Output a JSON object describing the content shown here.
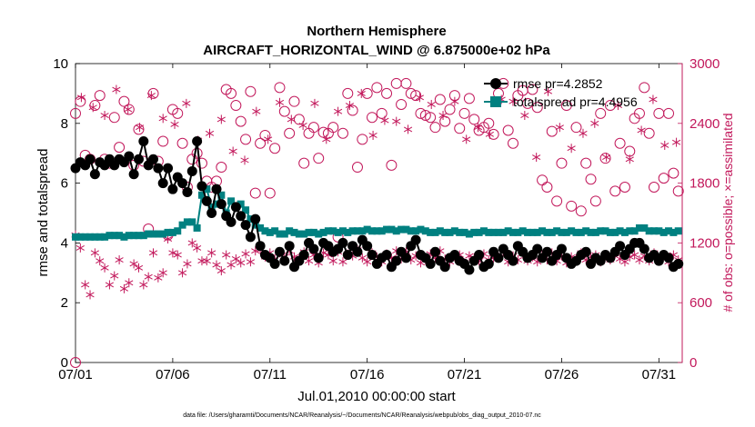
{
  "chart_data": {
    "type": "line",
    "title": "Northern Hemisphere",
    "subtitle": "AIRCRAFT_HORIZONTAL_WIND @ 6.875000e+02 hPa",
    "xlabel": "Jul.01,2010 00:00:00 start",
    "ylabel": "rmse and totalspread",
    "y2label": "# of obs: o=possible; ×=assimilated",
    "footer": "data file: /Users/gharamti/Documents/NCAR/Reanalysis/~/Documents/NCAR/Reanalysis/webpub/obs_diag_output_2010-07.nc",
    "xlim": [
      0,
      31.2
    ],
    "ylim": [
      0,
      10
    ],
    "y2lim": [
      0,
      3000
    ],
    "x_ticks": [
      0,
      5,
      10,
      15,
      20,
      25,
      30
    ],
    "x_tick_labels": [
      "07/01",
      "07/06",
      "07/11",
      "07/16",
      "07/21",
      "07/26",
      "07/31"
    ],
    "y_ticks": [
      0,
      2,
      4,
      6,
      8,
      10
    ],
    "y_tick_labels": [
      "0",
      "2",
      "4",
      "6",
      "8",
      "10"
    ],
    "y2_ticks": [
      0,
      600,
      1200,
      1800,
      2400,
      3000
    ],
    "y2_tick_labels": [
      "0",
      "600",
      "1200",
      "1800",
      "2400",
      "3000"
    ],
    "series_meta": [
      {
        "name": "rmse",
        "legend": "rmse pr=4.2852",
        "color": "#000000",
        "marker": "circle"
      },
      {
        "name": "totalspread",
        "legend": "totalspread pr=4.4956",
        "color": "#008080",
        "marker": "square"
      },
      {
        "name": "possible",
        "color": "#c2185b",
        "marker": "open-circle",
        "axis": "right"
      },
      {
        "name": "assimilated",
        "color": "#c2185b",
        "marker": "asterisk",
        "axis": "right"
      }
    ],
    "colors": {
      "rmse": "#000000",
      "spread": "#008080",
      "obs": "#c2185b"
    },
    "x": [
      0.0,
      0.25,
      0.5,
      0.75,
      1.0,
      1.25,
      1.5,
      1.75,
      2.0,
      2.25,
      2.5,
      2.75,
      3.0,
      3.25,
      3.5,
      3.75,
      4.0,
      4.25,
      4.5,
      4.75,
      5.0,
      5.25,
      5.5,
      5.75,
      6.0,
      6.25,
      6.5,
      6.75,
      7.0,
      7.25,
      7.5,
      7.75,
      8.0,
      8.25,
      8.5,
      8.75,
      9.0,
      9.25,
      9.5,
      9.75,
      10.0,
      10.25,
      10.5,
      10.75,
      11.0,
      11.25,
      11.5,
      11.75,
      12.0,
      12.25,
      12.5,
      12.75,
      13.0,
      13.25,
      13.5,
      13.75,
      14.0,
      14.25,
      14.5,
      14.75,
      15.0,
      15.25,
      15.5,
      15.75,
      16.0,
      16.25,
      16.5,
      16.75,
      17.0,
      17.25,
      17.5,
      17.75,
      18.0,
      18.25,
      18.5,
      18.75,
      19.0,
      19.25,
      19.5,
      19.75,
      20.0,
      20.25,
      20.5,
      20.75,
      21.0,
      21.25,
      21.5,
      21.75,
      22.0,
      22.25,
      22.5,
      22.75,
      23.0,
      23.25,
      23.5,
      23.75,
      24.0,
      24.25,
      24.5,
      24.75,
      25.0,
      25.25,
      25.5,
      25.75,
      26.0,
      26.25,
      26.5,
      26.75,
      27.0,
      27.25,
      27.5,
      27.75,
      28.0,
      28.25,
      28.5,
      28.75,
      29.0,
      29.25,
      29.5,
      29.75,
      30.0,
      30.25,
      30.5,
      30.75,
      31.0
    ],
    "rmse": [
      6.5,
      6.7,
      6.6,
      6.8,
      6.3,
      6.7,
      6.6,
      6.8,
      6.6,
      6.8,
      6.7,
      6.9,
      6.3,
      6.8,
      7.4,
      6.6,
      6.8,
      6.5,
      6.0,
      6.5,
      5.8,
      6.2,
      6.0,
      5.7,
      6.4,
      7.4,
      5.9,
      5.4,
      5.0,
      5.8,
      5.3,
      4.9,
      4.7,
      5.2,
      4.9,
      4.6,
      4.2,
      4.8,
      3.9,
      3.6,
      3.5,
      3.3,
      3.7,
      3.4,
      3.9,
      3.2,
      3.4,
      3.6,
      4.0,
      3.8,
      3.5,
      4.0,
      3.9,
      3.7,
      3.8,
      4.0,
      3.6,
      3.9,
      3.7,
      4.1,
      3.9,
      3.6,
      3.3,
      3.5,
      3.6,
      3.2,
      3.4,
      3.7,
      3.5,
      3.9,
      4.1,
      3.6,
      3.5,
      3.3,
      3.7,
      3.4,
      3.2,
      3.5,
      3.6,
      3.4,
      3.3,
      3.1,
      3.4,
      3.6,
      3.2,
      3.3,
      3.7,
      3.5,
      3.8,
      3.6,
      3.4,
      3.9,
      3.7,
      3.5,
      3.6,
      3.8,
      3.5,
      3.7,
      3.4,
      3.6,
      3.8,
      3.5,
      3.3,
      3.4,
      3.6,
      3.7,
      3.3,
      3.5,
      3.4,
      3.6,
      3.5,
      3.7,
      3.9,
      3.6,
      3.8,
      4.0,
      4.0,
      3.8,
      3.5,
      3.6,
      3.4,
      3.6,
      3.5,
      3.2,
      3.3
    ],
    "spread": [
      4.2,
      4.2,
      4.2,
      4.2,
      4.2,
      4.2,
      4.2,
      4.25,
      4.25,
      4.25,
      4.2,
      4.25,
      4.25,
      4.25,
      4.25,
      4.3,
      4.3,
      4.3,
      4.3,
      4.35,
      4.35,
      4.4,
      4.6,
      4.7,
      4.7,
      4.5,
      5.6,
      5.8,
      5.2,
      5.3,
      5.6,
      5.0,
      5.4,
      5.2,
      5.3,
      5.1,
      4.8,
      4.6,
      4.5,
      4.4,
      4.35,
      4.4,
      4.3,
      4.3,
      4.4,
      4.35,
      4.3,
      4.3,
      4.35,
      4.35,
      4.3,
      4.35,
      4.4,
      4.4,
      4.35,
      4.4,
      4.35,
      4.4,
      4.4,
      4.4,
      4.45,
      4.4,
      4.4,
      4.4,
      4.45,
      4.45,
      4.4,
      4.45,
      4.45,
      4.4,
      4.4,
      4.45,
      4.4,
      4.35,
      4.35,
      4.4,
      4.35,
      4.35,
      4.4,
      4.35,
      4.35,
      4.3,
      4.35,
      4.35,
      4.4,
      4.35,
      4.35,
      4.35,
      4.35,
      4.4,
      4.35,
      4.35,
      4.4,
      4.35,
      4.35,
      4.35,
      4.4,
      4.35,
      4.35,
      4.4,
      4.35,
      4.35,
      4.4,
      4.35,
      4.35,
      4.4,
      4.35,
      4.35,
      4.4,
      4.4,
      4.35,
      4.35,
      4.4,
      4.35,
      4.4,
      4.4,
      4.5,
      4.5,
      4.4,
      4.4,
      4.4,
      4.35,
      4.4,
      4.35,
      4.4
    ],
    "possible": [
      2500,
      2620,
      2080,
      2040,
      2580,
      2680,
      2040,
      2000,
      2460,
      2160,
      2620,
      2540,
      1980,
      2340,
      2020,
      1340,
      2700,
      2020,
      2220,
      1280,
      2540,
      2500,
      2200,
      1760,
      2040,
      2100,
      2000,
      1820,
      1760,
      1820,
      1960,
      2740,
      2700,
      2580,
      2420,
      2240,
      2720,
      1700,
      2200,
      2280,
      1700,
      2150,
      2760,
      2520,
      2300,
      2620,
      2440,
      2000,
      2300,
      2360,
      2050,
      2310,
      2300,
      2360,
      1260,
      2300,
      2700,
      2530,
      1960,
      2240,
      2700,
      2460,
      2760,
      2500,
      2700,
      1980,
      2800,
      2590,
      2800,
      2700,
      2680,
      2500,
      2480,
      2460,
      2360,
      2640,
      2420,
      2540,
      2680,
      2350,
      2500,
      2650,
      2440,
      2330,
      2360,
      2400,
      2290,
      2700,
      2800,
      2330,
      2200,
      2680,
      2730,
      2600,
      2740,
      2560,
      1830,
      1760,
      2320,
      1620,
      2000,
      2580,
      1570,
      2360,
      1520,
      2000,
      1840,
      1620,
      2500,
      2050,
      2580,
      1720,
      2200,
      1760,
      2120,
      2450,
      2500,
      2760,
      2300,
      1760,
      2500,
      1850,
      2500,
      1900,
      1720,
      1860,
      1940,
      1900,
      1800,
      1500
    ],
    "assimilated": [
      1280,
      1150,
      780,
      680,
      1100,
      1020,
      950,
      780,
      870,
      1030,
      740,
      800,
      990,
      950,
      780,
      860,
      1100,
      850,
      900,
      1240,
      1100,
      1080,
      900,
      990,
      1200,
      1150,
      1020,
      1020,
      1100,
      980,
      920,
      1080,
      980,
      1040,
      1000,
      1090,
      1010,
      1120,
      1130,
      1060,
      1100,
      1040,
      1100,
      1060,
      1120,
      1060,
      1050,
      1110,
      1020,
      1080,
      1000,
      1100,
      1080,
      1020,
      1110,
      1010,
      1090,
      1070,
      1130,
      1050,
      1010,
      1100,
      1060,
      1010,
      1090,
      1050,
      1120,
      1040,
      1110,
      1030,
      1070,
      1000,
      1030,
      1090,
      1050,
      1120,
      1040,
      1010,
      1060,
      1080,
      1000,
      1070,
      1050,
      1020,
      1090,
      1030,
      1050,
      1060,
      1110,
      1010,
      1070,
      1030,
      1090,
      1020,
      1060,
      1010,
      1080,
      1030,
      1100,
      1020,
      1070,
      1000,
      1060,
      1040,
      1100,
      1030,
      1060,
      1080,
      1010,
      1070,
      1030,
      1090,
      1040,
      1010,
      1060,
      1080,
      1030,
      1070,
      1020,
      1100,
      1040,
      1070,
      1010,
      1080,
      1030,
      1060,
      1020
    ],
    "assimilated_scatter_high": [
      2660,
      2560,
      2480,
      2740,
      2540,
      2360,
      2680,
      2450,
      2390,
      2600,
      2230,
      2300,
      2440,
      2120,
      2030,
      2520,
      2240,
      2610,
      2440,
      2380,
      2600,
      2240,
      2520,
      2580,
      2700,
      2280,
      2430,
      2420,
      2340,
      2660,
      2590,
      2480,
      2620,
      2240,
      2360,
      2290,
      2640,
      2620,
      2480,
      2060,
      2720,
      2360,
      2150,
      2300,
      2400,
      2060,
      2580,
      2040,
      2330,
      2640,
      2180,
      2210
    ]
  }
}
